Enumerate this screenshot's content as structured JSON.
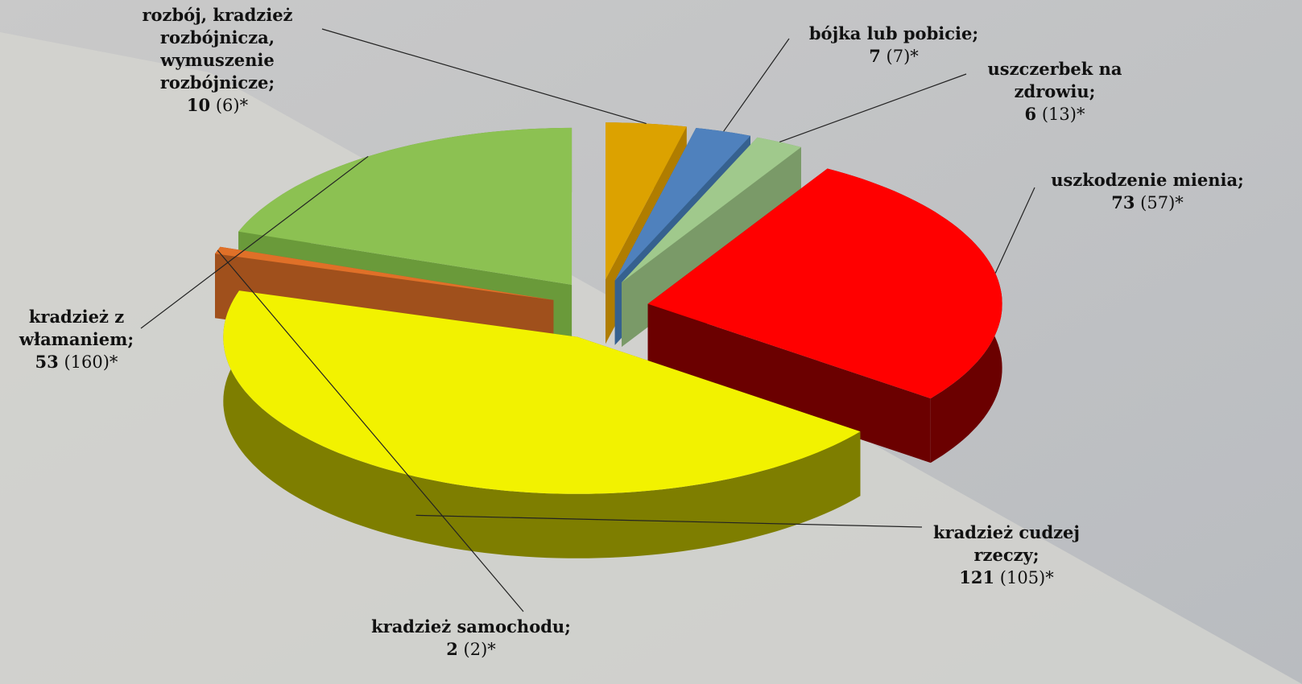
{
  "chart_data": {
    "type": "pie3d",
    "categories": [
      "rozbój, kradzież rozbójnicza, wymuszenie rozbójnicze;",
      "bójka lub pobicie;",
      "uszczerbek na zdrowiu;",
      "uszkodzenie mienia;",
      "kradzież cudzej rzeczy;",
      "kradzież samochodu;",
      "kradzież z włamaniem;"
    ],
    "values": [
      10,
      7,
      6,
      73,
      121,
      2,
      53
    ],
    "previous_labels": [
      "(6)*",
      "(7)*",
      "(13)*",
      "(57)*",
      "(105)*",
      "(2)*",
      "(160)*"
    ],
    "colors": [
      "#dca200",
      "#4f81bd",
      "#a0c98c",
      "#ff0000",
      "#f2f200",
      "#e07028",
      "#8cc152"
    ],
    "side_colors": [
      "#b07d00",
      "#36618f",
      "#7a9a68",
      "#6b0000",
      "#7e7e00",
      "#a0501c",
      "#6a9a3a"
    ]
  }
}
